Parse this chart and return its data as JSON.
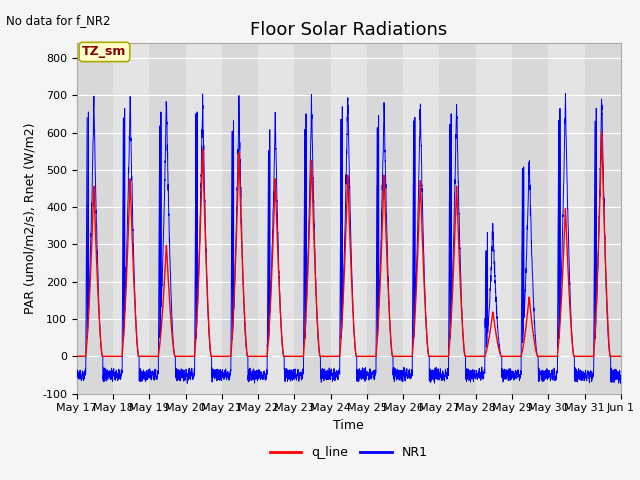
{
  "title": "Floor Solar Radiations",
  "xlabel": "Time",
  "ylabel": "PAR (umol/m2/s), Rnet (W/m2)",
  "ylim": [
    -100,
    840
  ],
  "yticks": [
    -100,
    0,
    100,
    200,
    300,
    400,
    500,
    600,
    700,
    800
  ],
  "note": "No data for f_NR2",
  "legend_label1": "q_line",
  "legend_label2": "NR1",
  "legend_color1": "red",
  "legend_color2": "blue",
  "box_label": "TZ_sm",
  "box_facecolor": "#ffffcc",
  "box_edgecolor": "#aaaa00",
  "num_days": 15,
  "x_tick_labels": [
    "May 17",
    "May 18",
    "May 19",
    "May 20",
    "May 21",
    "May 22",
    "May 23",
    "May 24",
    "May 25",
    "May 26",
    "May 27",
    "May 28",
    "May 29",
    "May 30",
    "May 31",
    "Jun 1"
  ],
  "axes_facecolor": "#e8e8e8",
  "band_light": "#e0e0e0",
  "band_dark": "#d0d0d0",
  "red_line_color": "red",
  "blue_line_color": "blue",
  "title_fontsize": 13,
  "label_fontsize": 9,
  "tick_fontsize": 8,
  "red_peaks": [
    460,
    480,
    300,
    560,
    550,
    480,
    530,
    490,
    490,
    475,
    460,
    120,
    160,
    400,
    605
  ],
  "blue_peaks": [
    690,
    700,
    690,
    690,
    665,
    640,
    685,
    705,
    680,
    675,
    685,
    350,
    535,
    700,
    700
  ],
  "night_level": -50,
  "pts_per_day": 288
}
